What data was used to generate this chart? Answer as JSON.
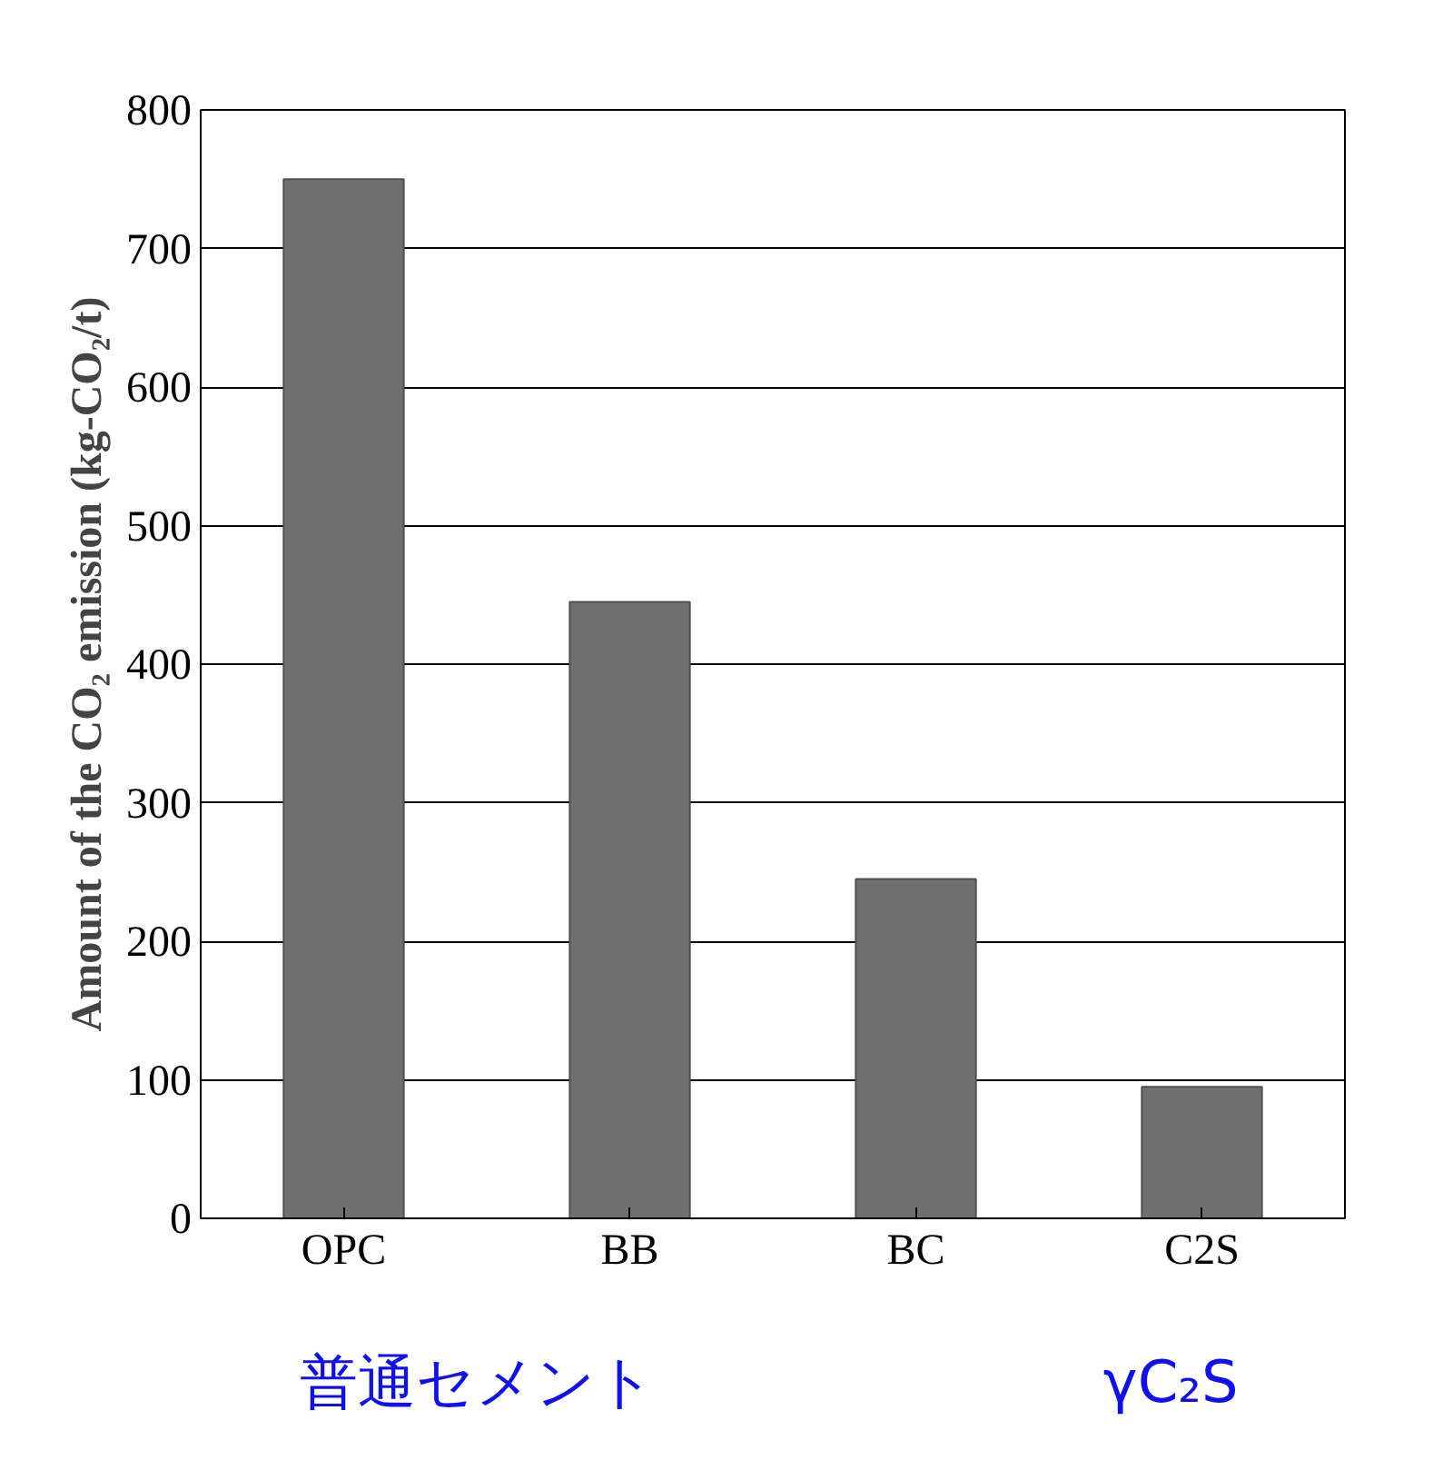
{
  "chart_data": {
    "type": "bar",
    "ylabel": "Amount of the CO₂ emission (kg-CO₂/t)",
    "categories": [
      "OPC",
      "BB",
      "BC",
      "C2S"
    ],
    "values": [
      750,
      445,
      245,
      95
    ],
    "color": "#707070",
    "ylim": [
      0,
      800
    ],
    "yticks": [
      0,
      100,
      200,
      300,
      400,
      500,
      600,
      700,
      800
    ],
    "grid": "y",
    "annotations": [
      "普通セメント",
      "γC₂S"
    ]
  }
}
